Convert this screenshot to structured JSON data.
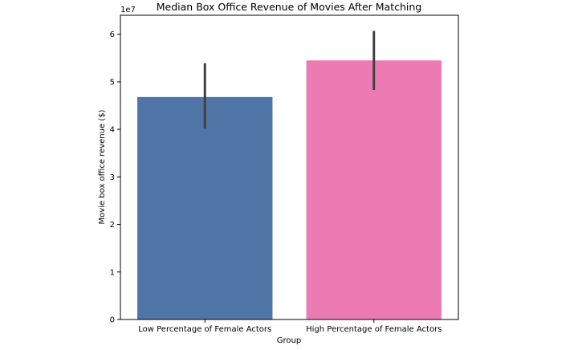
{
  "chart_data": {
    "type": "bar",
    "title": "Median Box Office Revenue of Movies After Matching",
    "xlabel": "Group",
    "ylabel": "Movie box office revenue ($)",
    "y_offset_label": "1e7",
    "ylim": [
      0,
      6.4
    ],
    "yticks": [
      0,
      1,
      2,
      3,
      4,
      5,
      6
    ],
    "ytick_labels": [
      "0",
      "1",
      "2",
      "3",
      "4",
      "5",
      "6"
    ],
    "categories": [
      "Low Percentage of Female Actors",
      "High Percentage of Female Actors"
    ],
    "values": [
      4.68,
      5.45
    ],
    "errors": [
      [
        4.02,
        5.39
      ],
      [
        4.83,
        6.07
      ]
    ],
    "colors": [
      "#4f74a6",
      "#ec7bb3"
    ],
    "error_color": "#404040",
    "grid": false,
    "legend": "none"
  }
}
